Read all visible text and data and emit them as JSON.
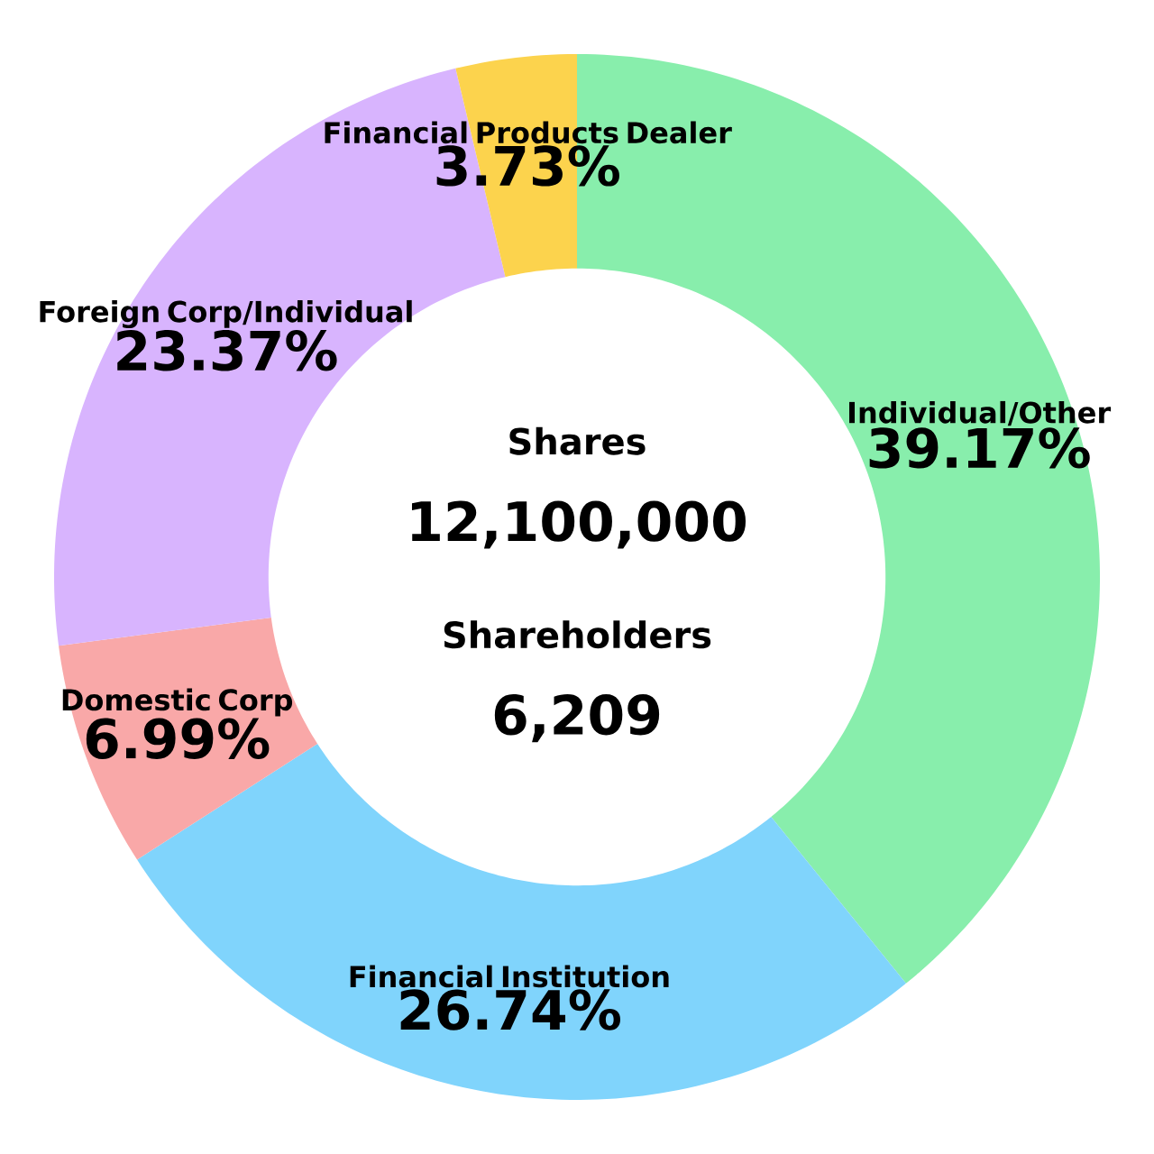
{
  "chart_data": {
    "type": "donut",
    "categories": [
      "Individual/Other",
      "Financial Institution",
      "Domestic Corp",
      "Foreign Corp/Individual",
      "Financial Products Dealer"
    ],
    "values": [
      39.17,
      26.74,
      6.99,
      23.37,
      3.73
    ],
    "colors": [
      "#88eeac",
      "#80d4fc",
      "#f9a8a8",
      "#d8b4fe",
      "#fcd34d"
    ],
    "value_labels": [
      "39.17%",
      "26.74%",
      "6.99%",
      "23.37%",
      "3.73%"
    ],
    "annotations": [
      "Shares",
      "12,100,000",
      "Shareholders",
      "6,209"
    ]
  }
}
